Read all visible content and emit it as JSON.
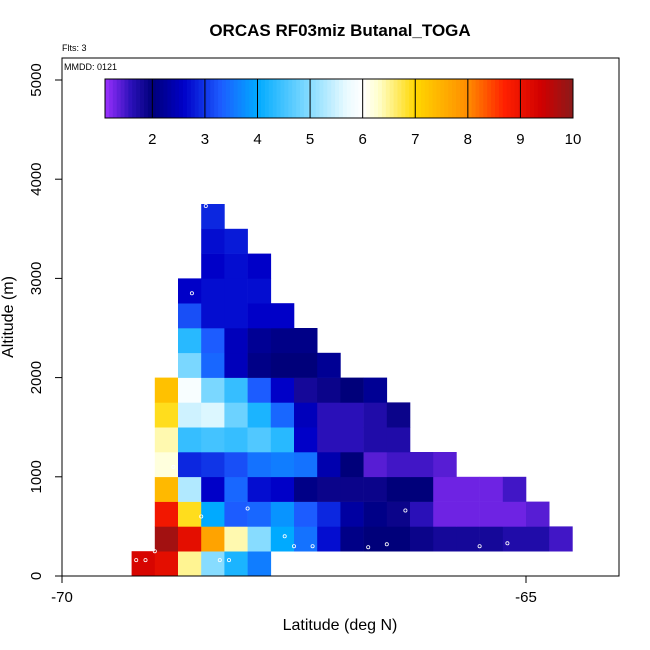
{
  "chart_data": {
    "type": "heatmap",
    "title": "ORCAS RF03miz Butanal_TOGA",
    "xlabel": "Latitude (deg N)",
    "ylabel": "Altitude (m)",
    "xlim": [
      -70,
      -64
    ],
    "ylim": [
      0,
      5200
    ],
    "x_ticks": [
      -70,
      -65
    ],
    "x_tick_labels": [
      "-70",
      "-65"
    ],
    "y_ticks": [
      0,
      1000,
      2000,
      3000,
      4000,
      5000
    ],
    "y_tick_labels": [
      "0",
      "1000",
      "2000",
      "3000",
      "4000",
      "5000"
    ],
    "flights_note": "Flts: 3",
    "date_note": "MMDD: 0121",
    "colorbar": {
      "min": 1.1,
      "max": 10,
      "ticks": [
        2,
        3,
        4,
        5,
        6,
        7,
        8,
        9,
        10
      ],
      "tick_labels": [
        "2",
        "3",
        "4",
        "5",
        "6",
        "7",
        "8",
        "9",
        "10"
      ],
      "stops": [
        {
          "v": 1.1,
          "c": "#9b30ff"
        },
        {
          "v": 1.6,
          "c": "#2a10b8"
        },
        {
          "v": 2.0,
          "c": "#00007a"
        },
        {
          "v": 2.6,
          "c": "#0000c8"
        },
        {
          "v": 3.3,
          "c": "#1c5cff"
        },
        {
          "v": 4.0,
          "c": "#00aaff"
        },
        {
          "v": 5.0,
          "c": "#87dcff"
        },
        {
          "v": 5.7,
          "c": "#eafbff"
        },
        {
          "v": 6.0,
          "c": "#ffffff"
        },
        {
          "v": 6.3,
          "c": "#ffffcc"
        },
        {
          "v": 7.0,
          "c": "#ffd700"
        },
        {
          "v": 8.0,
          "c": "#ff8c00"
        },
        {
          "v": 8.7,
          "c": "#ff2000"
        },
        {
          "v": 9.4,
          "c": "#d00000"
        },
        {
          "v": 10.0,
          "c": "#8b1a1a"
        }
      ]
    },
    "grid": {
      "lat_start": -69.25,
      "lat_step": 0.25,
      "alt_start": 0,
      "alt_step": 250,
      "rows": [
        {
          "row": 0,
          "col_start": 0,
          "values": [
            9.3,
            9.1,
            6.5,
            5.0,
            4.2,
            3.6
          ]
        },
        {
          "row": 1,
          "col_start": 1,
          "values": [
            9.8,
            9.1,
            7.7,
            6.4,
            5.0,
            4.0,
            3.5,
            2.7,
            2.1,
            2.0,
            2.0,
            1.9,
            1.8,
            1.8,
            1.8,
            1.7,
            1.7,
            1.5
          ]
        },
        {
          "row": 2,
          "col_start": 1,
          "values": [
            8.9,
            6.9,
            4.0,
            3.3,
            3.4,
            3.8,
            3.3,
            2.9,
            2.3,
            2.1,
            1.9,
            1.6,
            1.3,
            1.3,
            1.3,
            1.3,
            1.4
          ]
        },
        {
          "row": 3,
          "col_start": 1,
          "values": [
            7.4,
            5.3,
            2.6,
            3.4,
            2.7,
            2.6,
            2.1,
            1.9,
            1.9,
            1.9,
            2.0,
            2.0,
            1.3,
            1.3,
            1.3,
            1.5
          ]
        },
        {
          "row": 4,
          "col_start": 1,
          "values": [
            6.2,
            2.9,
            3.0,
            3.2,
            3.5,
            3.6,
            3.5,
            2.4,
            2.0,
            1.4,
            1.5,
            1.5,
            1.4
          ]
        },
        {
          "row": 5,
          "col_start": 1,
          "values": [
            6.4,
            4.4,
            4.5,
            4.4,
            4.6,
            4.3,
            2.6,
            1.6,
            1.6,
            1.7,
            1.7
          ]
        },
        {
          "row": 6,
          "col_start": 1,
          "values": [
            6.9,
            5.5,
            5.6,
            4.8,
            4.2,
            3.4,
            2.5,
            1.6,
            1.6,
            1.7,
            1.9
          ]
        },
        {
          "row": 7,
          "col_start": 1,
          "values": [
            7.3,
            5.9,
            4.9,
            4.4,
            3.3,
            2.6,
            1.8,
            1.9,
            2.0,
            2.2
          ]
        },
        {
          "row": 8,
          "col_start": 2,
          "values": [
            4.9,
            3.4,
            2.5,
            2.1,
            2.0,
            2.0,
            2.2
          ]
        },
        {
          "row": 9,
          "col_start": 2,
          "values": [
            4.3,
            3.3,
            2.5,
            2.2,
            2.1,
            2.1
          ]
        },
        {
          "row": 10,
          "col_start": 2,
          "values": [
            3.2,
            2.7,
            2.7,
            2.6,
            2.6
          ]
        },
        {
          "row": 11,
          "col_start": 2,
          "values": [
            2.6,
            2.7,
            2.7,
            2.7
          ]
        },
        {
          "row": 12,
          "col_start": 3,
          "values": [
            2.6,
            2.7,
            2.6
          ]
        },
        {
          "row": 13,
          "col_start": 3,
          "values": [
            2.7,
            2.8
          ]
        },
        {
          "row": 14,
          "col_start": 3,
          "values": [
            2.9
          ]
        }
      ]
    },
    "sample_points": [
      {
        "lat": -69.2,
        "alt": 160
      },
      {
        "lat": -69.1,
        "alt": 160
      },
      {
        "lat": -69.1,
        "alt": 400
      },
      {
        "lat": -69.0,
        "alt": 250
      },
      {
        "lat": -68.8,
        "alt": 1100
      },
      {
        "lat": -68.5,
        "alt": 600
      },
      {
        "lat": -68.3,
        "alt": 160
      },
      {
        "lat": -68.2,
        "alt": 160
      },
      {
        "lat": -68.0,
        "alt": 680
      },
      {
        "lat": -67.6,
        "alt": 400
      },
      {
        "lat": -67.5,
        "alt": 300
      },
      {
        "lat": -67.3,
        "alt": 300
      },
      {
        "lat": -66.7,
        "alt": 290
      },
      {
        "lat": -66.5,
        "alt": 320
      },
      {
        "lat": -66.3,
        "alt": 660
      },
      {
        "lat": -65.5,
        "alt": 300
      },
      {
        "lat": -65.2,
        "alt": 330
      },
      {
        "lat": -68.6,
        "alt": 2850
      },
      {
        "lat": -68.45,
        "alt": 3730
      }
    ]
  }
}
